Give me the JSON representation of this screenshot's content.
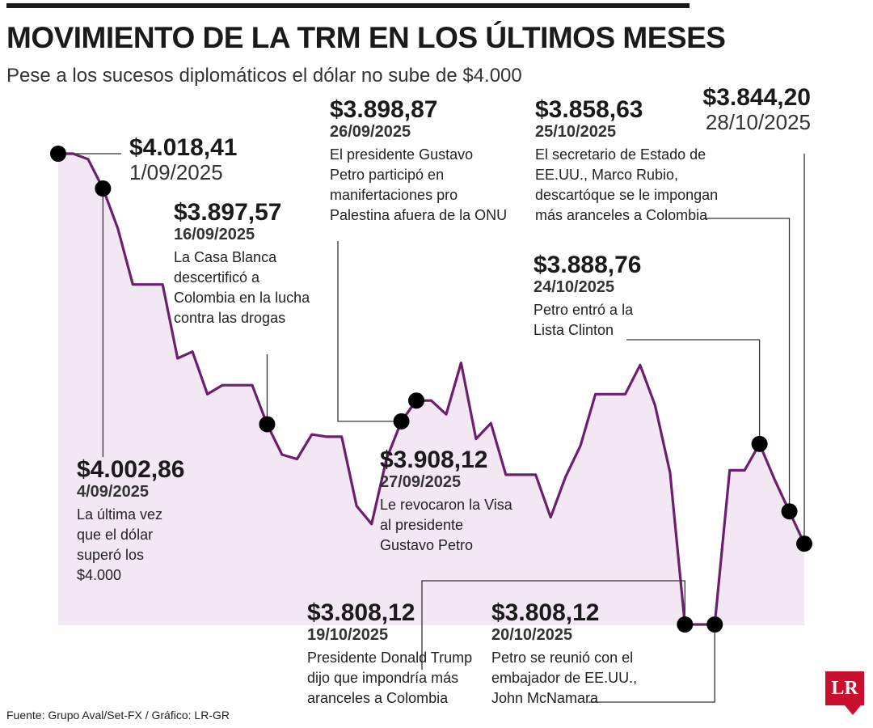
{
  "header": {
    "title": "MOVIMIENTO DE LA TRM EN LOS ÚLTIMOS MESES",
    "subtitle": "Pese a los sucesos diplomáticos el dólar no sube de $4.000"
  },
  "footer": {
    "source": "Fuente: Grupo Aval/Set-FX / Gráfico: LR-GR",
    "logo": "LR"
  },
  "colors": {
    "line": "#6b1f6e",
    "area": "#f1e8f3",
    "marker": "#000000",
    "leader": "#333333",
    "logo": "#c8102e"
  },
  "chart_data": {
    "type": "area",
    "title": "MOVIMIENTO DE LA TRM EN LOS ÚLTIMOS MESES",
    "subtitle": "Pese a los sucesos diplomáticos el dólar no sube de $4.000",
    "xlabel": "",
    "ylabel": "",
    "ylim": [
      3790,
      4030
    ],
    "grid": false,
    "legend": "none",
    "series": [
      {
        "values": [
          4018.41,
          4018.41,
          4016.0,
          4002.86,
          3985.0,
          3960.0,
          3960.0,
          3960.0,
          3927.0,
          3930.0,
          3911.0,
          3915.0,
          3915.0,
          3915.0,
          3897.57,
          3884.0,
          3882.0,
          3893.0,
          3892.0,
          3892.0,
          3861.0,
          3853.0,
          3882.0,
          3898.87,
          3908.12,
          3908.12,
          3902.0,
          3925.0,
          3891.0,
          3898.0,
          3875.0,
          3875.0,
          3875.0,
          3856.0,
          3874.0,
          3888.0,
          3911.0,
          3911.0,
          3911.0,
          3924.0,
          3906.0,
          3876.0,
          3808.12,
          3808.12,
          3808.12,
          3877.0,
          3877.0,
          3888.76,
          3873.0,
          3858.63,
          3844.2
        ]
      }
    ],
    "annotations": [
      {
        "point_index": 0,
        "value": "$4.018,41",
        "date": "1/09/2025",
        "text": ""
      },
      {
        "point_index": 3,
        "value": "$4.002,86",
        "date": "4/09/2025",
        "text": "La última vez que el dólar superó los $4.000"
      },
      {
        "point_index": 14,
        "value": "$3.897,57",
        "date": "16/09/2025",
        "text": "La Casa Blanca descertificó a Colombia en la lucha contra las drogas"
      },
      {
        "point_index": 23,
        "value": "$3.898,87",
        "date": "26/09/2025",
        "text": "El presidente Gustavo Petro participó en manifertaciones pro Palestina afuera de la ONU"
      },
      {
        "point_index": 24,
        "value": "$3.908,12",
        "date": "27/09/2025",
        "text": "Le revocaron la Visa al presidente Gustavo Petro"
      },
      {
        "point_index": 42,
        "value": "$3.808,12",
        "date": "19/10/2025",
        "text": "Presidente Donald Trump dijo que impondría más aranceles a Colombia"
      },
      {
        "point_index": 44,
        "value": "$3.808,12",
        "date": "20/10/2025",
        "text": "Petro se reunió con el embajador de EE.UU., John McNamara"
      },
      {
        "point_index": 47,
        "value": "$3.888,76",
        "date": "24/10/2025",
        "text": "Petro entró a la Lista Clinton"
      },
      {
        "point_index": 49,
        "value": "$3.858,63",
        "date": "25/10/2025",
        "text": "El secretario de Estado de EE.UU., Marco Rubio, descartóque se le impongan más aranceles a Colombia"
      },
      {
        "point_index": 50,
        "value": "$3.844,20",
        "date": "28/10/2025",
        "text": ""
      }
    ]
  }
}
